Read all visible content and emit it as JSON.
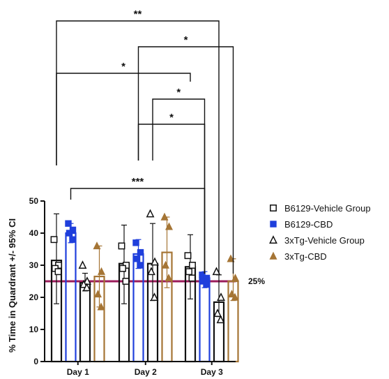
{
  "chart_data": {
    "type": "bar",
    "ylabel": "% Time in Quardrant +/- 95% CI",
    "ylim": [
      0,
      50
    ],
    "yticks": [
      "0",
      "10",
      "20",
      "30",
      "40",
      "50"
    ],
    "categories": [
      "Day 1",
      "Day 2",
      "Day 3"
    ],
    "reference_line": {
      "value": 25,
      "label": "25%",
      "color": "#9b1b5a"
    },
    "legend_position": "right",
    "series": [
      {
        "name": "B6129-Vehicle Group",
        "color": "#111111",
        "marker": "open-square",
        "fill": "none",
        "values": [
          31.5,
          30.5,
          29.5
        ],
        "ci": [
          [
            18,
            46
          ],
          [
            18,
            42.5
          ],
          [
            19.5,
            39.5
          ]
        ],
        "points": [
          [
            38,
            30,
            29,
            28
          ],
          [
            36,
            30,
            29,
            25
          ],
          [
            33,
            30,
            28,
            26
          ]
        ]
      },
      {
        "name": "B6129-CBD",
        "color": "#1f3fdc",
        "marker": "filled-square",
        "fill": "none",
        "values": [
          40,
          33.5,
          26
        ],
        "ci": [
          [
            37,
            43
          ],
          [
            29,
            38
          ],
          [
            23,
            28
          ]
        ],
        "points": [
          [
            43,
            41,
            40,
            38
          ],
          [
            37,
            34,
            32,
            30
          ],
          [
            27,
            26,
            25,
            24
          ]
        ]
      },
      {
        "name": "3xTg-Vehicle Group",
        "color": "#111111",
        "marker": "open-triangle",
        "fill": "none",
        "values": [
          24.5,
          30.5,
          18.5
        ],
        "ci": [
          [
            22,
            27.5
          ],
          [
            19,
            43
          ],
          [
            14,
            27
          ]
        ],
        "points": [
          [
            30,
            25,
            24,
            23
          ],
          [
            46,
            31,
            28,
            20
          ],
          [
            28,
            20,
            15,
            13
          ]
        ]
      },
      {
        "name": "3xTg-CBD",
        "color": "#a57535",
        "marker": "filled-triangle",
        "fill": "none",
        "values": [
          26.5,
          34,
          25
        ],
        "ci": [
          [
            17,
            36
          ],
          [
            23,
            45
          ],
          [
            19,
            32
          ]
        ],
        "points": [
          [
            36,
            28,
            21,
            17
          ],
          [
            45,
            42,
            30,
            26
          ],
          [
            32,
            26,
            21,
            20
          ]
        ]
      }
    ],
    "significance": [
      {
        "from": [
          "Day 1",
          "B6129-CBD"
        ],
        "to": [
          "Day 3",
          "B6129-CBD"
        ],
        "label": "***"
      },
      {
        "from": [
          "Day 2",
          "B6129-CBD"
        ],
        "to": [
          "Day 3",
          "B6129-CBD"
        ],
        "label": "*"
      },
      {
        "from": [
          "Day 2",
          "3xTg-Vehicle Group"
        ],
        "to": [
          "Day 3",
          "B6129-CBD"
        ],
        "label": "*"
      },
      {
        "from": [
          "Day 1",
          "B6129-Vehicle Group"
        ],
        "to": [
          "Day 3",
          "B6129-Vehicle Group"
        ],
        "label": "*"
      },
      {
        "from": [
          "Day 2",
          "B6129-CBD"
        ],
        "to": [
          "Day 3",
          "3xTg-CBD"
        ],
        "label": "*"
      },
      {
        "from": [
          "Day 1",
          "B6129-Vehicle Group"
        ],
        "to": [
          "Day 3",
          "3xTg-Vehicle Group"
        ],
        "label": "**"
      }
    ]
  }
}
